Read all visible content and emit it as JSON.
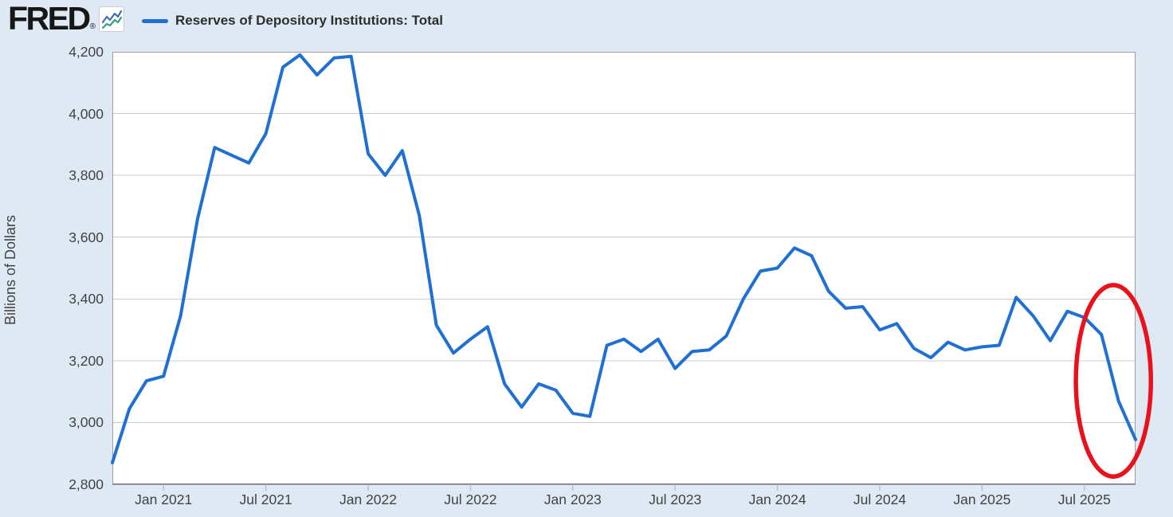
{
  "page": {
    "background": "#dfe9f4"
  },
  "header": {
    "logo_text": "FRED",
    "registered_mark": "®",
    "logo_icon": "fred-sparkline-icon",
    "legend": {
      "marker_color": "#1f70d2",
      "label": "Reserves of Depository Institutions: Total"
    }
  },
  "chart_data": {
    "type": "line",
    "title": "Reserves of Depository Institutions: Total",
    "xlabel": "",
    "ylabel": "Billions of Dollars",
    "ylim": [
      2800,
      4200
    ],
    "grid": "horizontal",
    "legend_position": "top",
    "line_color": "#1f70d2",
    "y_ticks": [
      2800,
      3000,
      3200,
      3400,
      3600,
      3800,
      4000,
      4200
    ],
    "y_tick_labels": [
      "2,800",
      "3,000",
      "3,200",
      "3,400",
      "3,600",
      "3,800",
      "4,000",
      "4,200"
    ],
    "x_ticks": [
      {
        "label": "Jan 2021",
        "month_index": 3
      },
      {
        "label": "Jul 2021",
        "month_index": 9
      },
      {
        "label": "Jan 2022",
        "month_index": 15
      },
      {
        "label": "Jul 2022",
        "month_index": 21
      },
      {
        "label": "Jan 2023",
        "month_index": 27
      },
      {
        "label": "Jul 2023",
        "month_index": 33
      },
      {
        "label": "Jan 2024",
        "month_index": 39
      },
      {
        "label": "Jul 2024",
        "month_index": 45
      },
      {
        "label": "Jan 2025",
        "month_index": 51
      },
      {
        "label": "Jul 2025",
        "month_index": 57
      }
    ],
    "x_start": "2020-10",
    "x_end": "2025-10",
    "frequency": "monthly",
    "series": [
      {
        "name": "Reserves of Depository Institutions: Total",
        "unit": "Billions of Dollars",
        "values": [
          2870,
          3045,
          3135,
          3150,
          3345,
          3660,
          3890,
          3865,
          3840,
          3935,
          4150,
          4190,
          4125,
          4180,
          4185,
          3870,
          3800,
          3880,
          3670,
          3315,
          3225,
          3270,
          3310,
          3125,
          3050,
          3125,
          3105,
          3030,
          3020,
          3250,
          3270,
          3230,
          3270,
          3175,
          3230,
          3235,
          3280,
          3400,
          3490,
          3500,
          3565,
          3540,
          3425,
          3370,
          3375,
          3300,
          3320,
          3240,
          3210,
          3260,
          3235,
          3245,
          3250,
          3405,
          3345,
          3265,
          3360,
          3340,
          3285,
          3070,
          2945
        ]
      }
    ],
    "annotation_ellipse": {
      "color": "#e8111c",
      "center_month_index": 58.7,
      "center_value": 3135,
      "radius_months": 2.2,
      "radius_value": 310,
      "stroke_width": 5.5
    }
  }
}
